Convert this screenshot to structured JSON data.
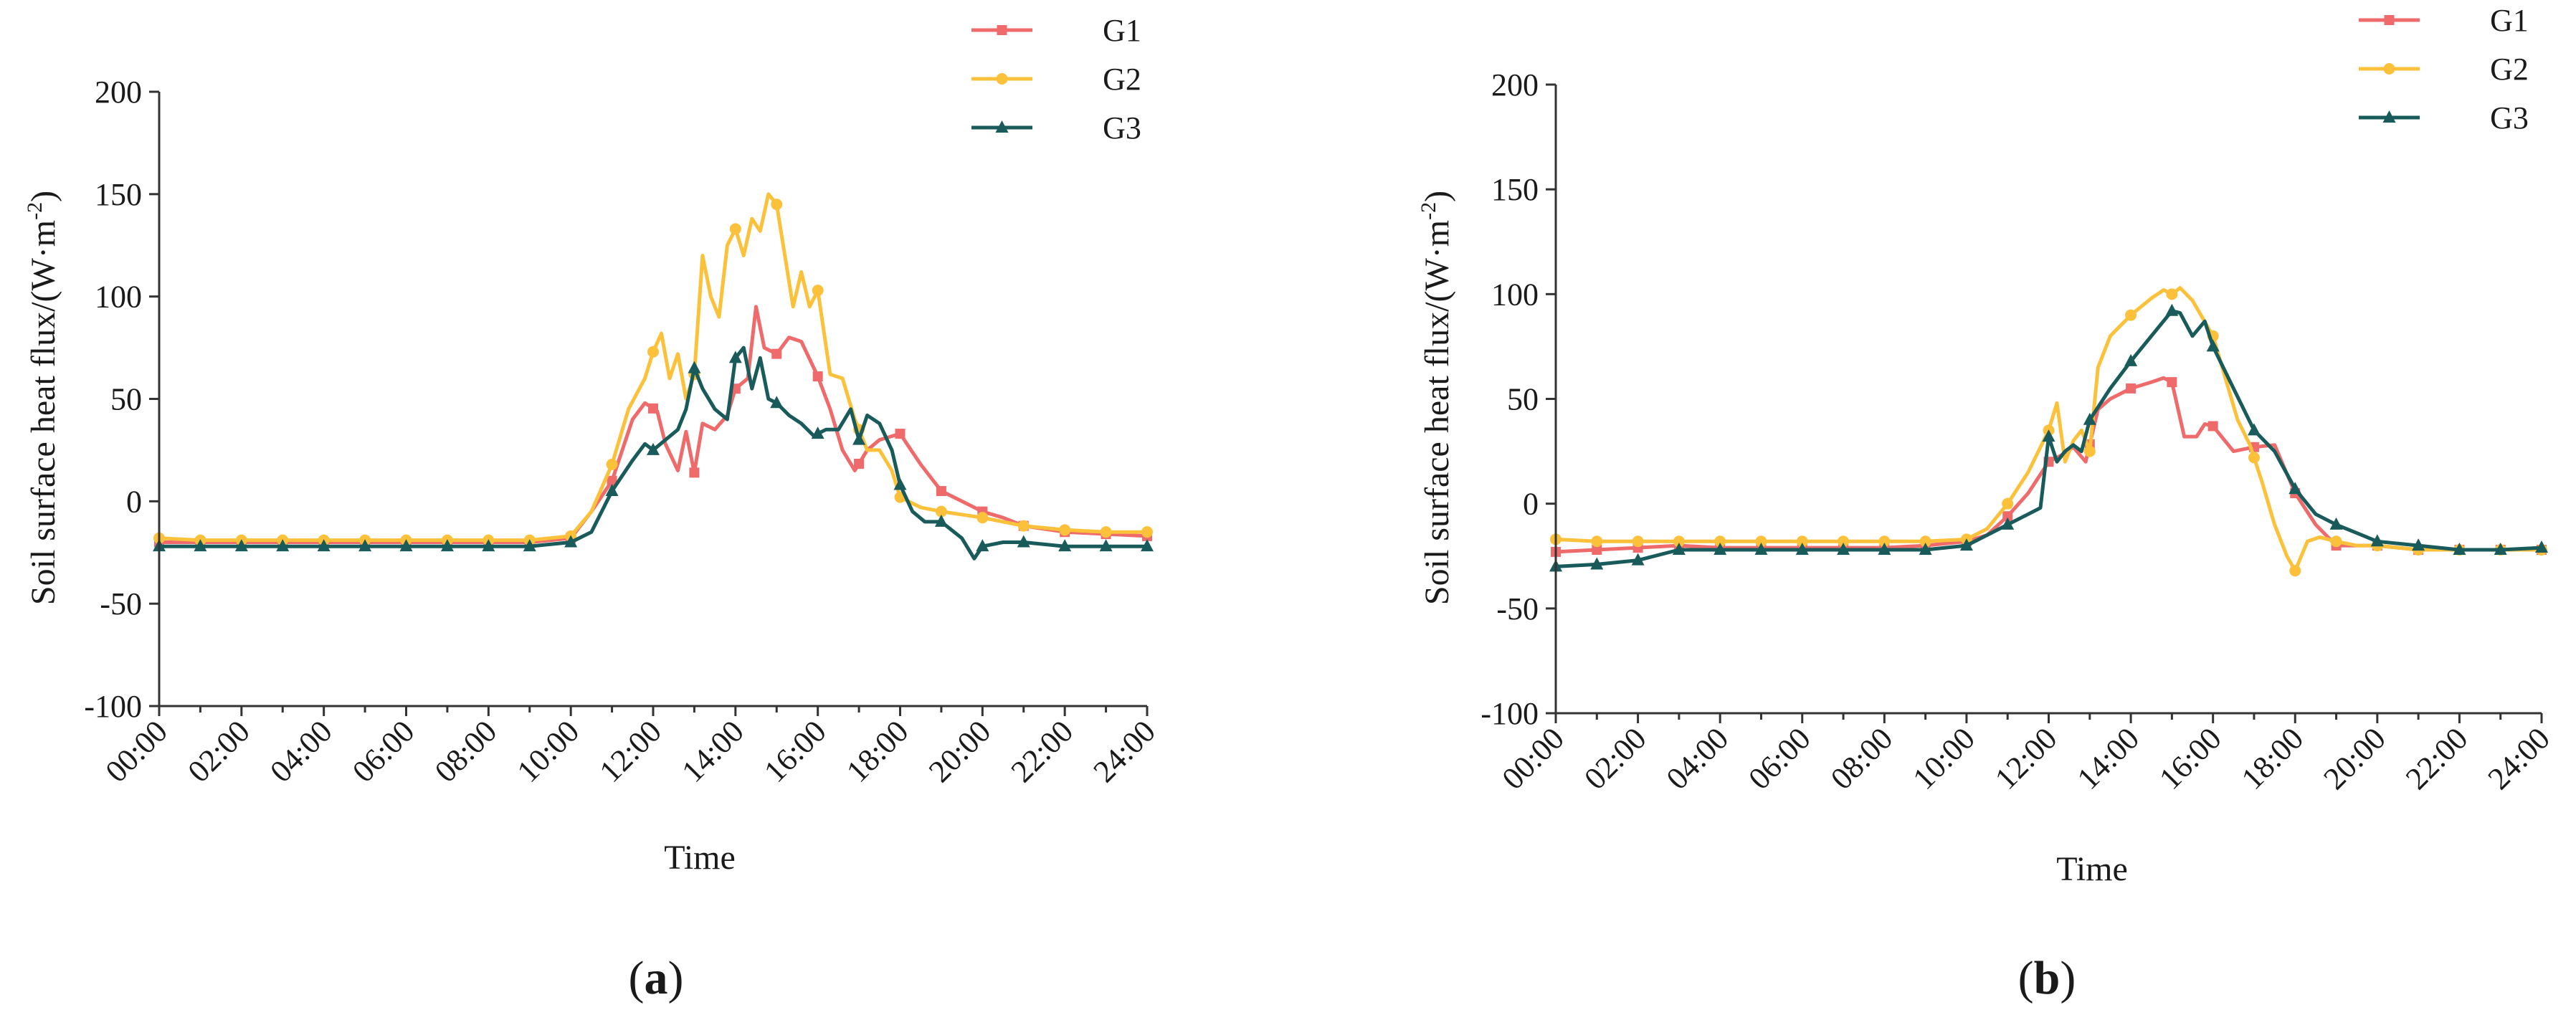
{
  "colors": {
    "G1": "#ef6a6a",
    "G2": "#fbc13b",
    "G3": "#195b5b"
  },
  "chart_data": [
    {
      "type": "line",
      "panel_label": "a",
      "xlabel": "Time",
      "ylabel": "Soil surface heat flux/(W·m⁻²)",
      "ylabel_parts": {
        "main": "Soil surface heat flux/(W·m",
        "sup": "-2",
        "tail": ")"
      },
      "xlim": [
        0,
        24
      ],
      "ylim": [
        -100,
        200
      ],
      "yticks": [
        -100,
        -50,
        0,
        50,
        100,
        150,
        200
      ],
      "ytick_labels": [
        "-100",
        "-50",
        "0",
        "50",
        "100",
        "150",
        "200"
      ],
      "xticks": [
        0,
        2,
        4,
        6,
        8,
        10,
        12,
        14,
        16,
        18,
        20,
        22,
        24
      ],
      "xtick_labels": [
        "00:00",
        "02:00",
        "04:00",
        "06:00",
        "08:00",
        "10:00",
        "12:00",
        "14:00",
        "16:00",
        "18:00",
        "20:00",
        "22:00",
        "24:00"
      ],
      "legend_position": "top-right",
      "series": [
        {
          "name": "G1",
          "marker": "square",
          "x": [
            0,
            1,
            2,
            3,
            4,
            5,
            6,
            7,
            8,
            9,
            10,
            10.5,
            11,
            11.5,
            11.8,
            12.1,
            12.3,
            12.6,
            12.8,
            13,
            13.2,
            13.5,
            13.8,
            14,
            14.3,
            14.5,
            14.7,
            15,
            15.3,
            15.6,
            16,
            16.3,
            16.6,
            16.9,
            17.2,
            17.5,
            18,
            18.5,
            19,
            19.5,
            20,
            20.5,
            21,
            22,
            23,
            24
          ],
          "y": [
            -20,
            -20,
            -20,
            -20,
            -20,
            -20,
            -20,
            -20,
            -20,
            -20,
            -18,
            -5,
            10,
            40,
            48,
            44,
            28,
            15,
            34,
            14,
            38,
            35,
            42,
            55,
            60,
            95,
            75,
            72,
            80,
            78,
            61,
            45,
            25,
            15,
            25,
            30,
            33,
            18,
            5,
            0,
            -5,
            -8,
            -12,
            -15,
            -16,
            -17
          ],
          "markers_x": [
            0,
            1,
            2,
            3,
            4,
            5,
            6,
            7,
            8,
            9,
            10,
            11,
            12,
            13,
            14,
            15,
            16,
            17,
            18,
            19,
            20,
            21,
            22,
            23,
            24
          ]
        },
        {
          "name": "G2",
          "marker": "circle",
          "x": [
            0,
            1,
            2,
            3,
            4,
            5,
            6,
            7,
            8,
            9,
            10,
            10.5,
            11,
            11.4,
            11.8,
            12,
            12.2,
            12.4,
            12.6,
            12.8,
            13,
            13.2,
            13.4,
            13.6,
            13.8,
            14,
            14.2,
            14.4,
            14.6,
            14.8,
            15,
            15.2,
            15.4,
            15.6,
            15.8,
            16,
            16.3,
            16.6,
            16.9,
            17.2,
            17.5,
            17.8,
            18,
            18.5,
            19,
            20,
            21,
            22,
            23,
            24
          ],
          "y": [
            -18,
            -19,
            -19,
            -19,
            -19,
            -19,
            -19,
            -19,
            -19,
            -19,
            -17,
            -5,
            18,
            45,
            60,
            73,
            82,
            60,
            72,
            50,
            62,
            120,
            100,
            90,
            125,
            133,
            120,
            138,
            132,
            150,
            145,
            120,
            95,
            112,
            95,
            103,
            62,
            60,
            40,
            25,
            25,
            15,
            2,
            -3,
            -5,
            -8,
            -12,
            -14,
            -15,
            -15
          ],
          "markers_x": [
            0,
            1,
            2,
            3,
            4,
            5,
            6,
            7,
            8,
            9,
            10,
            11,
            12,
            13,
            14,
            15,
            16,
            17,
            18,
            19,
            20,
            21,
            22,
            23,
            24
          ]
        },
        {
          "name": "G3",
          "marker": "triangle",
          "x": [
            0,
            1,
            2,
            3,
            4,
            5,
            6,
            7,
            8,
            9,
            10,
            10.5,
            11,
            11.5,
            11.8,
            12,
            12.3,
            12.6,
            12.8,
            13,
            13.2,
            13.5,
            13.8,
            14,
            14.2,
            14.4,
            14.6,
            14.8,
            15,
            15.3,
            15.6,
            15.9,
            16.2,
            16.5,
            16.8,
            17,
            17.2,
            17.5,
            17.8,
            18,
            18.3,
            18.6,
            19,
            19.5,
            19.8,
            20,
            20.5,
            21,
            22,
            23,
            24
          ],
          "y": [
            -22,
            -22,
            -22,
            -22,
            -22,
            -22,
            -22,
            -22,
            -22,
            -22,
            -20,
            -15,
            5,
            20,
            28,
            25,
            30,
            35,
            45,
            65,
            55,
            45,
            40,
            70,
            75,
            55,
            70,
            50,
            48,
            42,
            38,
            32,
            35,
            35,
            45,
            30,
            42,
            38,
            25,
            8,
            -5,
            -10,
            -10,
            -18,
            -28,
            -22,
            -20,
            -20,
            -22,
            -22,
            -22
          ],
          "markers_x": [
            0,
            1,
            2,
            3,
            4,
            5,
            6,
            7,
            8,
            9,
            10,
            11,
            12,
            13,
            14,
            15,
            16,
            17,
            18,
            19,
            20,
            21,
            22,
            23,
            24
          ]
        }
      ]
    },
    {
      "type": "line",
      "panel_label": "b",
      "xlabel": "Time",
      "ylabel": "Soil surface heat flux/(W·m⁻²)",
      "ylabel_parts": {
        "main": "Soil surface heat flux/(W·m",
        "sup": "-2",
        "tail": ")"
      },
      "xlim": [
        0,
        24
      ],
      "ylim": [
        -100,
        200
      ],
      "yticks": [
        -100,
        -50,
        0,
        50,
        100,
        150,
        200
      ],
      "ytick_labels": [
        "-100",
        "-50",
        "0",
        "50",
        "100",
        "150",
        "200"
      ],
      "xticks": [
        0,
        2,
        4,
        6,
        8,
        10,
        12,
        14,
        16,
        18,
        20,
        22,
        24
      ],
      "xtick_labels": [
        "00:00",
        "02:00",
        "04:00",
        "06:00",
        "08:00",
        "10:00",
        "12:00",
        "14:00",
        "16:00",
        "18:00",
        "20:00",
        "22:00",
        "24:00"
      ],
      "legend_position": "top-right",
      "series": [
        {
          "name": "G1",
          "marker": "square",
          "x": [
            0,
            1,
            2,
            3,
            4,
            5,
            6,
            7,
            8,
            9,
            10,
            10.5,
            11,
            11.5,
            12,
            12.3,
            12.6,
            12.9,
            13.2,
            13.5,
            14,
            14.5,
            14.8,
            15,
            15.3,
            15.6,
            15.8,
            16,
            16.5,
            17,
            17.5,
            18,
            18.5,
            19,
            20,
            21,
            22,
            23,
            24
          ],
          "y": [
            -23,
            -22,
            -21,
            -20,
            -21,
            -21,
            -21,
            -21,
            -21,
            -20,
            -18,
            -15,
            -6,
            5,
            20,
            23,
            27,
            20,
            45,
            50,
            55,
            58,
            60,
            58,
            32,
            32,
            38,
            37,
            25,
            27,
            28,
            5,
            -10,
            -20,
            -20,
            -22,
            -22,
            -22,
            -22
          ],
          "markers_x": [
            0,
            1,
            2,
            3,
            4,
            5,
            6,
            7,
            8,
            9,
            10,
            11,
            12,
            13,
            14,
            15,
            16,
            17,
            18,
            19,
            20,
            21,
            22,
            23,
            24
          ]
        },
        {
          "name": "G2",
          "marker": "circle",
          "x": [
            0,
            1,
            2,
            3,
            4,
            5,
            6,
            7,
            8,
            9,
            10,
            10.5,
            11,
            11.5,
            12,
            12.2,
            12.4,
            12.6,
            12.8,
            13,
            13.2,
            13.5,
            14,
            14.5,
            14.8,
            15,
            15.2,
            15.5,
            16,
            16.3,
            16.6,
            16.9,
            17.2,
            17.5,
            17.8,
            18,
            18.3,
            18.6,
            19,
            19.5,
            20,
            21,
            22,
            23,
            24
          ],
          "y": [
            -17,
            -18,
            -18,
            -18,
            -18,
            -18,
            -18,
            -18,
            -18,
            -18,
            -17,
            -12,
            0,
            15,
            35,
            48,
            20,
            30,
            35,
            25,
            65,
            80,
            90,
            98,
            102,
            100,
            103,
            97,
            80,
            60,
            40,
            28,
            10,
            -10,
            -25,
            -32,
            -18,
            -16,
            -18,
            -20,
            -20,
            -22,
            -22,
            -22,
            -22
          ],
          "markers_x": [
            0,
            1,
            2,
            3,
            4,
            5,
            6,
            7,
            8,
            9,
            10,
            11,
            12,
            13,
            14,
            15,
            16,
            17,
            18,
            19,
            20,
            21,
            22,
            23,
            24
          ]
        },
        {
          "name": "G3",
          "marker": "triangle",
          "x": [
            0,
            1,
            2,
            3,
            4,
            5,
            6,
            7,
            8,
            9,
            10,
            10.5,
            11,
            11.5,
            11.8,
            12,
            12.2,
            12.4,
            12.6,
            12.8,
            13,
            13.5,
            14,
            14.5,
            15,
            15.2,
            15.5,
            15.8,
            16,
            16.5,
            17,
            17.5,
            18,
            18.5,
            19,
            19.5,
            20,
            21,
            22,
            23,
            24
          ],
          "y": [
            -30,
            -29,
            -27,
            -22,
            -22,
            -22,
            -22,
            -22,
            -22,
            -22,
            -20,
            -15,
            -10,
            -5,
            -2,
            32,
            20,
            25,
            28,
            25,
            40,
            55,
            68,
            80,
            92,
            91,
            80,
            87,
            75,
            55,
            35,
            25,
            7,
            -5,
            -10,
            -14,
            -18,
            -20,
            -22,
            -22,
            -21
          ],
          "markers_x": [
            0,
            1,
            2,
            3,
            4,
            5,
            6,
            7,
            8,
            9,
            10,
            11,
            12,
            13,
            14,
            15,
            16,
            17,
            18,
            19,
            20,
            21,
            22,
            23,
            24
          ]
        }
      ]
    }
  ]
}
